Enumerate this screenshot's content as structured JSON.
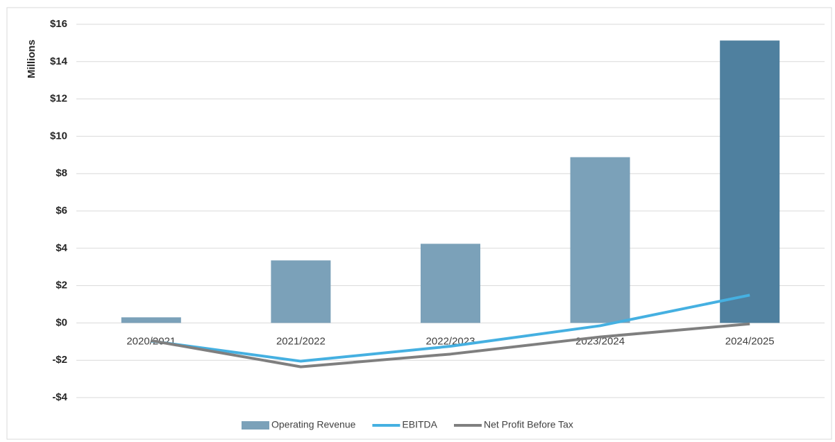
{
  "chart_data": {
    "type": "bar-line",
    "y_axis_label": "Millions",
    "categories": [
      "2020/2021",
      "2021/2022",
      "2022/2023",
      "2023/2024",
      "2024/2025"
    ],
    "series": [
      {
        "name": "Operating Revenue",
        "type": "bar",
        "color": "#7ba1b9",
        "colors": [
          "#7ba1b9",
          "#7ba1b9",
          "#7ba1b9",
          "#7ba1b9",
          "#4f809f"
        ],
        "values": [
          0.3,
          3.35,
          4.24,
          8.88,
          15.13
        ]
      },
      {
        "name": "EBITDA",
        "type": "line",
        "color": "#45b0e1",
        "values": [
          -0.97,
          -2.05,
          -1.25,
          -0.15,
          1.49
        ]
      },
      {
        "name": "Net Profit Before Tax",
        "type": "line",
        "color": "#7f7f7f",
        "values": [
          -0.95,
          -2.35,
          -1.67,
          -0.75,
          -0.05
        ]
      }
    ],
    "ylim": [
      -4,
      16
    ],
    "yticks": [
      {
        "value": -4,
        "label": "-$4"
      },
      {
        "value": -2,
        "label": "-$2"
      },
      {
        "value": 0,
        "label": "$0"
      },
      {
        "value": 2,
        "label": "$2"
      },
      {
        "value": 4,
        "label": "$4"
      },
      {
        "value": 6,
        "label": "$6"
      },
      {
        "value": 8,
        "label": "$8"
      },
      {
        "value": 10,
        "label": "$10"
      },
      {
        "value": 12,
        "label": "$12"
      },
      {
        "value": 14,
        "label": "$14"
      },
      {
        "value": 16,
        "label": "$16"
      }
    ],
    "grid": true,
    "legend": "bottom"
  }
}
